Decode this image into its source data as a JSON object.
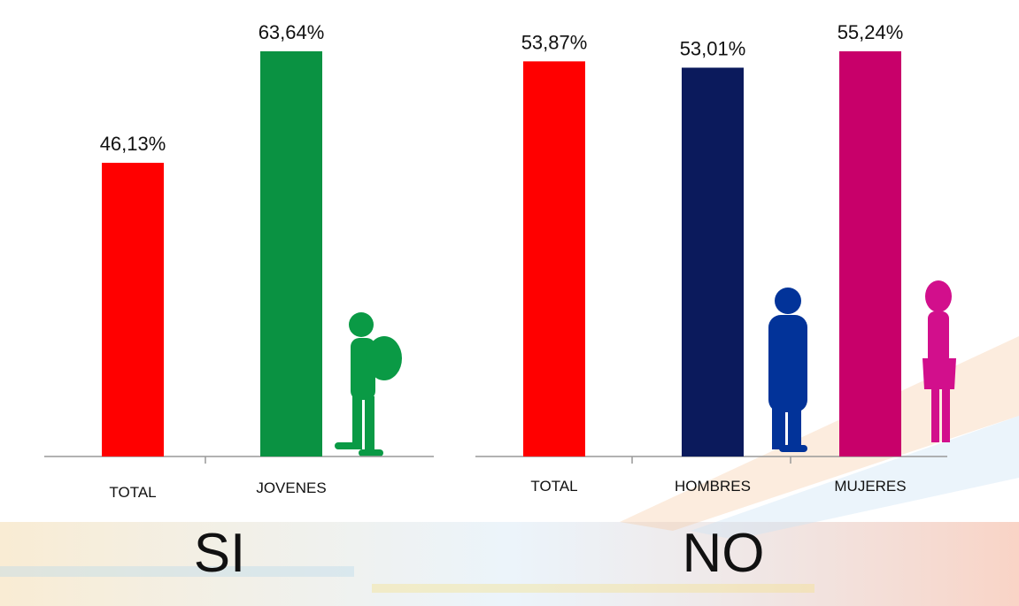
{
  "chart_data": [
    {
      "type": "bar",
      "title": "SI",
      "categories": [
        "TOTAL",
        "JOVENES"
      ],
      "values": [
        46.13,
        63.64
      ],
      "value_labels": [
        "46,13%",
        "63,64%"
      ],
      "colors": [
        "#ff0000",
        "#0a9242"
      ]
    },
    {
      "type": "bar",
      "title": "NO",
      "categories": [
        "TOTAL",
        "HOMBRES",
        "MUJERES"
      ],
      "values": [
        53.87,
        53.01,
        55.24
      ],
      "value_labels": [
        "53,87%",
        "53,01%",
        "55,24%"
      ],
      "colors": [
        "#ff0000",
        "#0b1a5c",
        "#c8006a"
      ]
    }
  ]
}
